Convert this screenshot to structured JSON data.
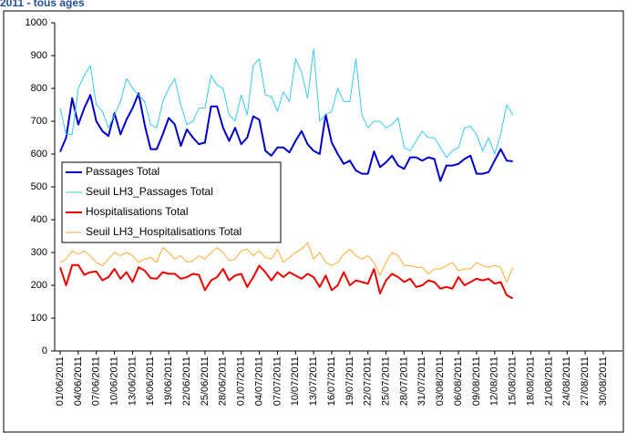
{
  "chart_data": {
    "type": "line",
    "title": "2011 - tous âges",
    "categories": [
      "01/06/2011",
      null,
      null,
      "04/06/2011",
      null,
      null,
      "07/06/2011",
      null,
      null,
      "10/06/2011",
      null,
      null,
      "13/06/2011",
      null,
      null,
      "16/06/2011",
      null,
      null,
      "19/06/2011",
      null,
      null,
      "22/06/2011",
      null,
      null,
      "25/06/2011",
      null,
      null,
      "28/06/2011",
      null,
      null,
      "01/07/2011",
      null,
      null,
      "04/07/2011",
      null,
      null,
      "07/07/2011",
      null,
      null,
      "10/07/2011",
      null,
      null,
      "13/07/2011",
      null,
      null,
      "16/07/2011",
      null,
      null,
      "19/07/2011",
      null,
      null,
      "22/07/2011",
      null,
      null,
      "25/07/2011",
      null,
      null,
      "28/07/2011",
      null,
      null,
      "31/07/2011",
      null,
      null,
      "03/08/2011",
      null,
      null,
      "06/08/2011",
      null,
      null,
      "09/08/2011",
      null,
      null,
      "12/08/2011",
      null,
      null,
      "15/08/2011",
      null,
      null,
      "18/08/2011",
      null,
      null,
      "21/08/2011",
      null,
      null,
      "24/08/2011",
      null,
      null,
      "27/08/2011",
      null,
      null,
      "30/08/2011"
    ],
    "series": [
      {
        "name": "Passages Total",
        "color": "#0000cc",
        "width": 2,
        "values": [
          607,
          650,
          770,
          690,
          740,
          780,
          700,
          670,
          655,
          725,
          660,
          705,
          740,
          785,
          690,
          615,
          615,
          660,
          710,
          690,
          625,
          675,
          650,
          630,
          635,
          745,
          745,
          680,
          640,
          680,
          630,
          650,
          715,
          705,
          610,
          595,
          620,
          620,
          605,
          640,
          670,
          630,
          610,
          600,
          720,
          635,
          600,
          570,
          580,
          550,
          540,
          540,
          608,
          560,
          575,
          595,
          565,
          555,
          590,
          590,
          580,
          590,
          585,
          518,
          565,
          565,
          570,
          585,
          595,
          540,
          540,
          545,
          580,
          615,
          580,
          578,
          null,
          null,
          null,
          null,
          null,
          null,
          null,
          null,
          null,
          null,
          null,
          null,
          null,
          null,
          null
        ]
      },
      {
        "name": "Seuil LH3_Passages Total",
        "color": "#33ccee",
        "width": 1,
        "values": [
          740,
          660,
          660,
          800,
          840,
          870,
          750,
          730,
          680,
          720,
          760,
          830,
          800,
          780,
          760,
          690,
          680,
          760,
          800,
          830,
          750,
          690,
          700,
          740,
          740,
          840,
          810,
          800,
          720,
          700,
          780,
          720,
          870,
          890,
          780,
          775,
          730,
          790,
          760,
          890,
          850,
          770,
          920,
          700,
          720,
          730,
          800,
          760,
          760,
          890,
          720,
          680,
          700,
          700,
          680,
          690,
          710,
          620,
          610,
          640,
          670,
          650,
          650,
          620,
          590,
          610,
          620,
          680,
          685,
          660,
          610,
          650,
          600,
          660,
          750,
          720,
          null,
          null,
          null,
          null,
          null,
          null,
          null,
          null,
          null,
          null,
          null,
          null,
          null,
          null,
          null
        ]
      },
      {
        "name": "Hospitalisations Total",
        "color": "#ee0000",
        "width": 2,
        "values": [
          255,
          200,
          262,
          262,
          232,
          240,
          242,
          215,
          225,
          250,
          220,
          240,
          210,
          255,
          245,
          222,
          220,
          240,
          235,
          235,
          220,
          225,
          235,
          232,
          185,
          215,
          225,
          250,
          215,
          230,
          235,
          195,
          225,
          260,
          240,
          215,
          240,
          225,
          240,
          230,
          220,
          235,
          225,
          195,
          230,
          185,
          200,
          240,
          200,
          215,
          210,
          205,
          250,
          175,
          215,
          235,
          225,
          210,
          220,
          195,
          200,
          215,
          210,
          190,
          195,
          190,
          225,
          200,
          210,
          220,
          215,
          220,
          205,
          210,
          170,
          160,
          null,
          null,
          null,
          null,
          null,
          null,
          null,
          null,
          null,
          null,
          null,
          null,
          null,
          null,
          null
        ]
      },
      {
        "name": "Seuil LH3_Hospitalisations Total",
        "color": "#ffaa33",
        "width": 1,
        "values": [
          270,
          280,
          305,
          295,
          305,
          290,
          270,
          260,
          280,
          300,
          290,
          300,
          290,
          270,
          280,
          285,
          270,
          315,
          300,
          280,
          290,
          270,
          275,
          290,
          280,
          300,
          315,
          300,
          275,
          280,
          305,
          310,
          290,
          305,
          285,
          280,
          310,
          270,
          285,
          300,
          310,
          330,
          280,
          300,
          270,
          260,
          270,
          295,
          310,
          290,
          280,
          290,
          270,
          230,
          270,
          300,
          290,
          260,
          260,
          255,
          255,
          235,
          250,
          250,
          260,
          270,
          245,
          250,
          250,
          270,
          260,
          255,
          260,
          255,
          210,
          255,
          null,
          null,
          null,
          null,
          null,
          null,
          null,
          null,
          null,
          null,
          null,
          null,
          null,
          null,
          null
        ]
      }
    ],
    "ylim": [
      0,
      1000
    ],
    "yticks": [
      0,
      100,
      200,
      300,
      400,
      500,
      600,
      700,
      800,
      900,
      1000
    ],
    "grid": false
  }
}
